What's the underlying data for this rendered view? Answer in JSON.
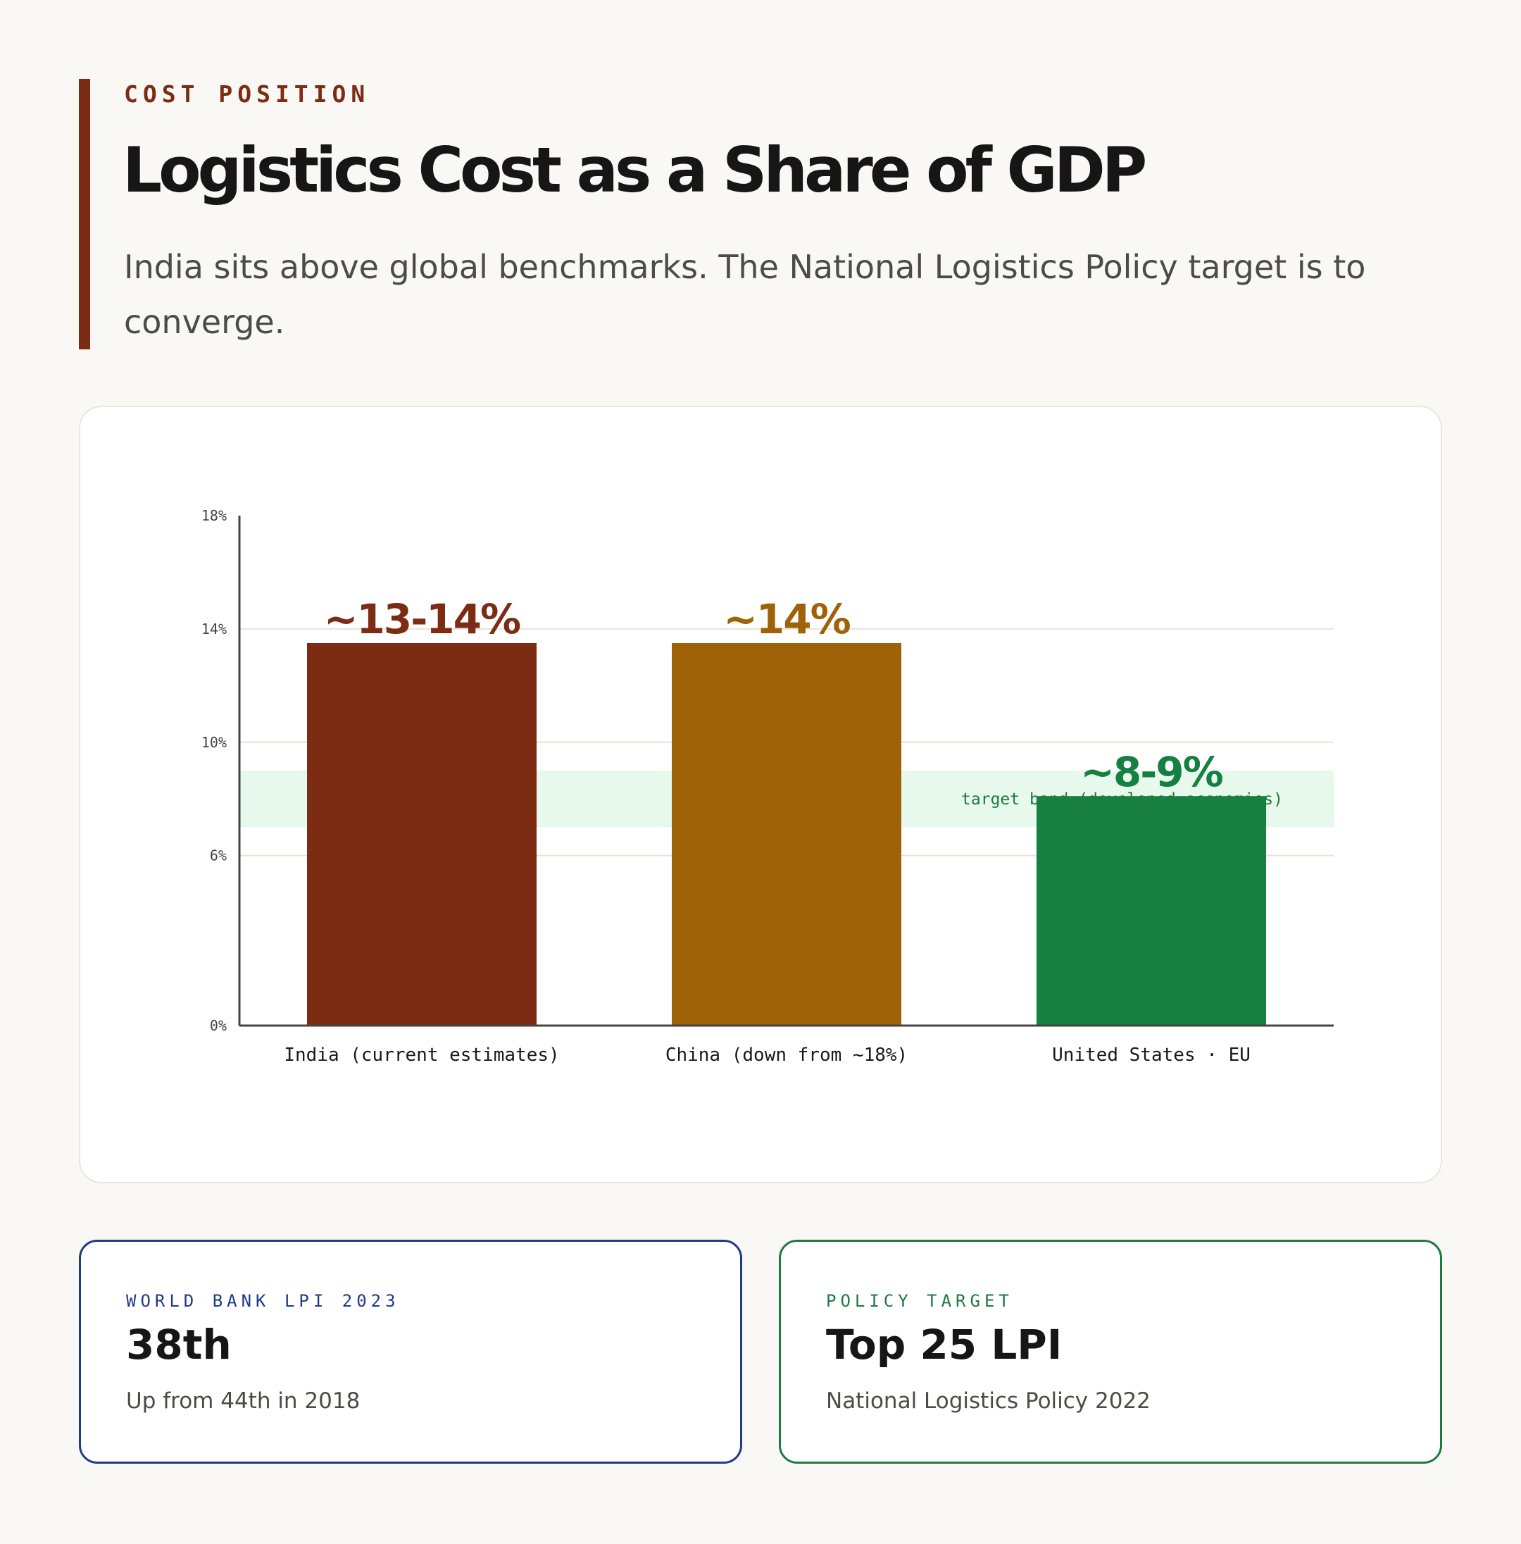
{
  "header": {
    "eyebrow": "COST POSITION",
    "title": "Logistics Cost as a Share of GDP",
    "subtitle": "India sits above global benchmarks. The National Logistics Policy target is to converge."
  },
  "chart_data": {
    "type": "bar",
    "categories": [
      "India (current estimates)",
      "China (down from ~18%)",
      "United States · EU"
    ],
    "values": [
      13.5,
      13.5,
      8.1
    ],
    "value_labels": [
      "~13-14%",
      "~14%",
      "~8-9%"
    ],
    "colors": [
      "#7d2c14",
      "#a06208",
      "#168040"
    ],
    "label_colors": [
      "#7d2c14",
      "#a06208",
      "#168040"
    ],
    "ylim": [
      0,
      18
    ],
    "yticks": [
      0,
      6,
      10,
      14,
      18
    ],
    "ytick_labels": [
      "0%",
      "6%",
      "10%",
      "14%",
      "18%"
    ],
    "target_band": {
      "from": 7,
      "to": 9,
      "label": "target band (developed economies)",
      "color": "#e6f9ec"
    },
    "grid": true,
    "xlabel": "",
    "ylabel": ""
  },
  "stats": [
    {
      "label": "WORLD BANK LPI 2023",
      "value": "38th",
      "note": "Up from 44th in 2018"
    },
    {
      "label": "POLICY TARGET",
      "value": "Top 25 LPI",
      "note": "National Logistics Policy 2022"
    }
  ]
}
